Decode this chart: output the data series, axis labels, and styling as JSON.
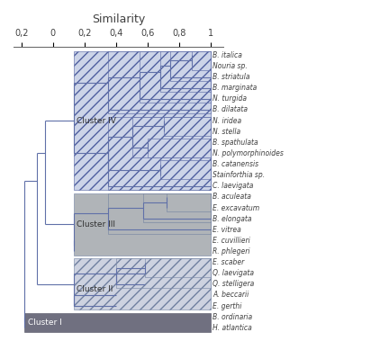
{
  "title": "Similarity",
  "species": [
    "B. italica",
    "Nouria sp.",
    "B. striatula",
    "B. marginata",
    "N. turgida",
    "B. dilatata",
    "N. iridea",
    "N. stella",
    "B. spathulata",
    "N. polymorphinoides",
    "B. catanensis",
    "Stainforthia sp.",
    "C. laevigata",
    "B. aculeata",
    "E. excavatum",
    "B. elongata",
    "E. vitrea",
    "E. cuvillieri",
    "R. phlegeri",
    "E. scaber",
    "Q. laevigata",
    "Q. stelligera",
    "A. beccarii",
    "E. gerthi",
    "B. ordinaria",
    "H. atlantica"
  ],
  "fc4": "#ccd4e8",
  "ec4": "#5060a0",
  "hatch4": "///",
  "fc3": "#b0b4b8",
  "ec3": "#7080a0",
  "hatch3": "",
  "fc2": "#cdd2e0",
  "ec2": "#7080a0",
  "hatch2": "///",
  "fc1": "#707080",
  "ec1": "#505060",
  "hatch1": "",
  "dc": "#6070a8",
  "bg": "#ffffff",
  "tc": "#404040",
  "label_fs": 5.5,
  "cluster_fs": 6.5,
  "title_fs": 9,
  "lw": 0.8
}
